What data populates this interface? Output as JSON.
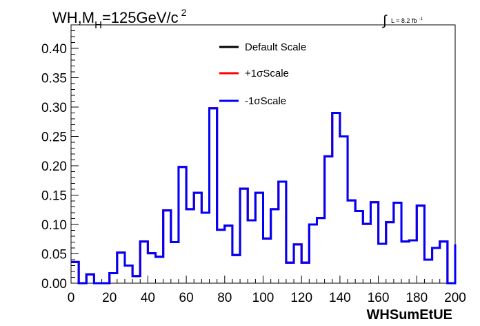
{
  "chart_data": {
    "type": "line",
    "title_main": "WH,M",
    "title_sub": "H",
    "title_rest": "=125GeV/c",
    "title_sup": "2",
    "lumi_symbol": "∫",
    "lumi_text": "L = 8.2 fb",
    "lumi_sup": "-1",
    "xlabel": "WHSumEtUE",
    "xlim": [
      0,
      200
    ],
    "ylim": [
      0,
      0.44
    ],
    "x_ticks": [
      "0",
      "20",
      "40",
      "60",
      "80",
      "100",
      "120",
      "140",
      "160",
      "180",
      "200"
    ],
    "y_ticks": [
      "0.00",
      "0.05",
      "0.10",
      "0.15",
      "0.20",
      "0.25",
      "0.30",
      "0.35",
      "0.40"
    ],
    "bin_edges_step": 4,
    "series": [
      {
        "name": "Default Scale",
        "color": "#000000",
        "values": [
          0.036,
          0.0,
          0.015,
          0.0,
          0.0,
          0.017,
          0.052,
          0.03,
          0.012,
          0.071,
          0.051,
          0.045,
          0.124,
          0.07,
          0.198,
          0.126,
          0.154,
          0.12,
          0.298,
          0.091,
          0.098,
          0.048,
          0.161,
          0.107,
          0.154,
          0.076,
          0.126,
          0.173,
          0.035,
          0.066,
          0.035,
          0.1,
          0.111,
          0.216,
          0.29,
          0.25,
          0.141,
          0.123,
          0.101,
          0.138,
          0.067,
          0.104,
          0.137,
          0.071,
          0.073,
          0.132,
          0.04,
          0.06,
          0.071,
          0.0,
          0.066
        ]
      },
      {
        "name": "+1σScale",
        "color": "#ff0000",
        "values": [
          0.036,
          0.0,
          0.015,
          0.0,
          0.0,
          0.017,
          0.052,
          0.03,
          0.012,
          0.071,
          0.051,
          0.045,
          0.124,
          0.07,
          0.198,
          0.126,
          0.154,
          0.12,
          0.298,
          0.091,
          0.098,
          0.048,
          0.161,
          0.107,
          0.154,
          0.076,
          0.126,
          0.173,
          0.035,
          0.066,
          0.035,
          0.1,
          0.111,
          0.216,
          0.29,
          0.25,
          0.141,
          0.123,
          0.101,
          0.138,
          0.067,
          0.104,
          0.137,
          0.071,
          0.073,
          0.132,
          0.04,
          0.06,
          0.071,
          0.0,
          0.066
        ]
      },
      {
        "name": "-1σScale",
        "color": "#0000ff",
        "values": [
          0.036,
          0.0,
          0.015,
          0.0,
          0.0,
          0.017,
          0.052,
          0.03,
          0.012,
          0.071,
          0.051,
          0.045,
          0.124,
          0.07,
          0.198,
          0.126,
          0.154,
          0.12,
          0.298,
          0.091,
          0.098,
          0.048,
          0.161,
          0.107,
          0.154,
          0.076,
          0.126,
          0.173,
          0.035,
          0.066,
          0.035,
          0.1,
          0.111,
          0.216,
          0.29,
          0.25,
          0.141,
          0.123,
          0.101,
          0.138,
          0.067,
          0.104,
          0.137,
          0.071,
          0.073,
          0.132,
          0.04,
          0.06,
          0.071,
          0.0,
          0.066
        ]
      }
    ],
    "legend_position": "top-center",
    "grid": false
  }
}
